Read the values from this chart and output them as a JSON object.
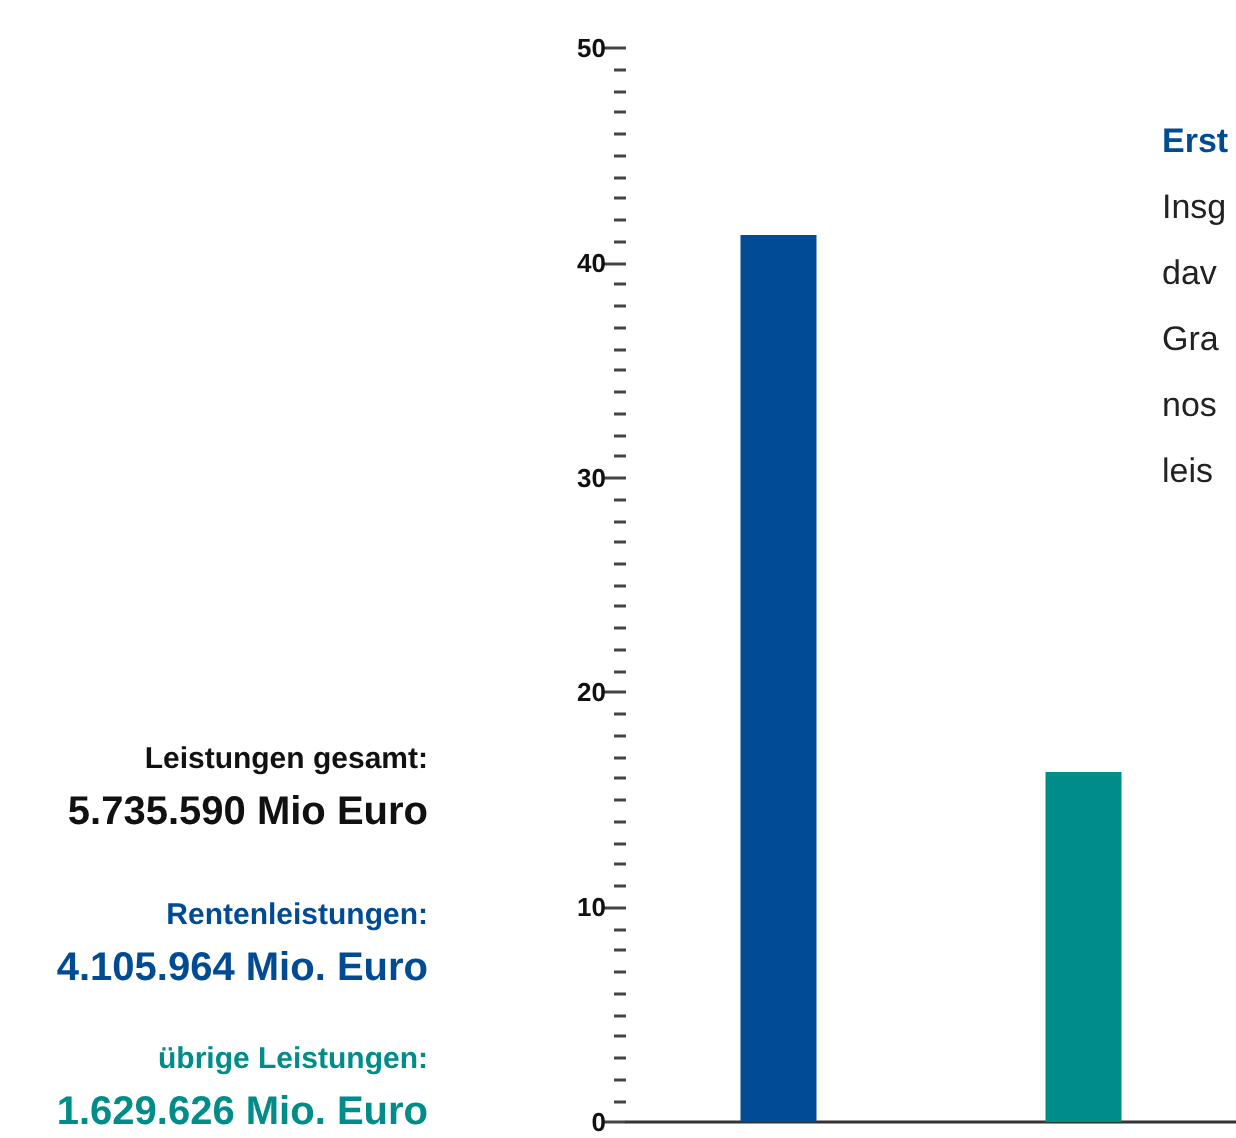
{
  "chart_data": {
    "type": "bar",
    "categories": [
      null,
      null
    ],
    "values": [
      41.3,
      16.3
    ],
    "colors": [
      "#004b93",
      "#008d8a"
    ],
    "ylim": [
      0,
      50
    ],
    "yticks": [
      0,
      10,
      20,
      30,
      40,
      50
    ],
    "grid": false,
    "annotations": [
      "Leistungen gesamt:",
      "5.735.590 Mio Euro",
      "Rentenleistungen:",
      "4.105.964 Mio. Euro",
      "übrige Leistungen:",
      "1.629.626 Mio. Euro",
      "Erst",
      "Insg",
      "dav",
      "Gra",
      "nos",
      "leis"
    ]
  }
}
